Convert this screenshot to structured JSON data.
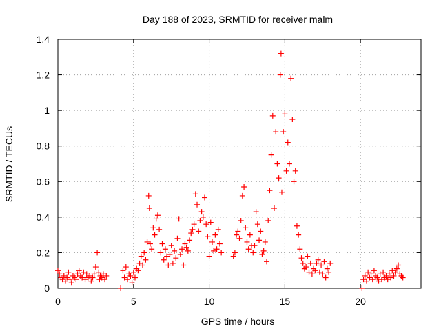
{
  "chart_data": {
    "type": "scatter",
    "title": "Day 188 of 2023, SRMTID for receiver malm",
    "xlabel": "GPS time / hours",
    "ylabel": "SRMTID / TECUs",
    "xlim": [
      0,
      24
    ],
    "ylim": [
      0,
      1.4
    ],
    "xticks": [
      0,
      5,
      10,
      15,
      20
    ],
    "xtick_labels": [
      "0",
      "5",
      "10",
      "15",
      "20"
    ],
    "yticks": [
      0,
      0.2,
      0.4,
      0.6,
      0.8,
      1.0,
      1.2,
      1.4
    ],
    "ytick_labels": [
      "0",
      "0.2",
      "0.4",
      "0.6",
      "0.8",
      "1",
      "1.2",
      "1.4"
    ],
    "grid": true,
    "marker": "plus",
    "series": [
      {
        "name": "SRMTID",
        "color": "#ff0000",
        "x": [
          0.0,
          0.1,
          0.2,
          0.3,
          0.4,
          0.5,
          0.6,
          0.7,
          0.8,
          0.9,
          1.0,
          1.1,
          1.2,
          1.3,
          1.4,
          1.5,
          1.6,
          1.7,
          1.8,
          1.9,
          2.0,
          2.1,
          2.2,
          2.3,
          2.4,
          2.5,
          2.6,
          2.7,
          2.75,
          2.8,
          2.9,
          3.0,
          3.1,
          3.2,
          4.15,
          4.3,
          4.4,
          4.5,
          4.6,
          4.7,
          4.8,
          4.9,
          5.0,
          5.1,
          5.2,
          5.3,
          5.4,
          5.5,
          5.6,
          5.7,
          5.8,
          5.9,
          6.0,
          6.05,
          6.1,
          6.2,
          6.3,
          6.4,
          6.5,
          6.6,
          6.7,
          6.8,
          6.9,
          7.0,
          7.1,
          7.2,
          7.3,
          7.4,
          7.5,
          7.6,
          7.7,
          7.8,
          7.9,
          8.0,
          8.1,
          8.2,
          8.3,
          8.4,
          8.5,
          8.6,
          8.7,
          8.8,
          8.9,
          9.0,
          9.1,
          9.2,
          9.3,
          9.4,
          9.5,
          9.6,
          9.7,
          9.8,
          9.9,
          10.0,
          10.1,
          10.2,
          10.3,
          10.4,
          10.5,
          10.6,
          10.7,
          10.8,
          11.6,
          11.7,
          11.8,
          11.9,
          12.0,
          12.1,
          12.2,
          12.3,
          12.4,
          12.5,
          12.6,
          12.7,
          12.8,
          12.9,
          13.0,
          13.1,
          13.2,
          13.3,
          13.4,
          13.5,
          13.6,
          13.7,
          13.8,
          13.9,
          14.0,
          14.1,
          14.2,
          14.3,
          14.4,
          14.5,
          14.6,
          14.7,
          14.75,
          14.8,
          14.9,
          15.0,
          15.1,
          15.2,
          15.3,
          15.4,
          15.5,
          15.6,
          15.7,
          15.8,
          15.9,
          16.0,
          16.1,
          16.2,
          16.3,
          16.4,
          16.5,
          16.6,
          16.7,
          16.8,
          16.9,
          17.0,
          17.1,
          17.2,
          17.3,
          17.4,
          17.5,
          17.6,
          17.7,
          17.8,
          17.9,
          18.0,
          20.1,
          20.2,
          20.3,
          20.4,
          20.5,
          20.6,
          20.7,
          20.8,
          20.9,
          21.0,
          21.1,
          21.2,
          21.3,
          21.4,
          21.5,
          21.6,
          21.7,
          21.8,
          21.9,
          22.0,
          22.1,
          22.2,
          22.3,
          22.4,
          22.5,
          22.6,
          22.7,
          22.8
        ],
        "y": [
          0.1,
          0.08,
          0.06,
          0.05,
          0.07,
          0.04,
          0.06,
          0.09,
          0.05,
          0.03,
          0.07,
          0.06,
          0.05,
          0.08,
          0.1,
          0.07,
          0.06,
          0.09,
          0.05,
          0.08,
          0.06,
          0.07,
          0.04,
          0.06,
          0.08,
          0.12,
          0.2,
          0.09,
          0.05,
          0.07,
          0.06,
          0.08,
          0.05,
          0.07,
          0.0,
          0.1,
          0.06,
          0.12,
          0.05,
          0.08,
          0.07,
          0.03,
          0.09,
          0.06,
          0.11,
          0.1,
          0.14,
          0.18,
          0.13,
          0.2,
          0.16,
          0.26,
          0.52,
          0.45,
          0.25,
          0.22,
          0.34,
          0.3,
          0.39,
          0.41,
          0.33,
          0.2,
          0.25,
          0.16,
          0.22,
          0.18,
          0.13,
          0.19,
          0.24,
          0.14,
          0.21,
          0.17,
          0.28,
          0.39,
          0.19,
          0.22,
          0.13,
          0.25,
          0.23,
          0.21,
          0.27,
          0.31,
          0.33,
          0.36,
          0.53,
          0.47,
          0.32,
          0.38,
          0.43,
          0.4,
          0.51,
          0.36,
          0.29,
          0.18,
          0.37,
          0.26,
          0.21,
          0.3,
          0.22,
          0.33,
          0.25,
          0.2,
          0.18,
          0.2,
          0.3,
          0.32,
          0.28,
          0.38,
          0.52,
          0.57,
          0.34,
          0.26,
          0.22,
          0.3,
          0.24,
          0.2,
          0.24,
          0.43,
          0.36,
          0.27,
          0.32,
          0.19,
          0.21,
          0.26,
          0.15,
          0.38,
          0.55,
          0.75,
          0.97,
          0.45,
          0.88,
          0.7,
          0.62,
          1.2,
          1.32,
          0.54,
          0.88,
          0.98,
          0.66,
          0.82,
          0.7,
          1.18,
          0.95,
          0.6,
          0.66,
          0.35,
          0.3,
          0.22,
          0.17,
          0.14,
          0.11,
          0.12,
          0.18,
          0.09,
          0.14,
          0.08,
          0.11,
          0.1,
          0.14,
          0.16,
          0.09,
          0.13,
          0.08,
          0.15,
          0.06,
          0.11,
          0.09,
          0.14,
          0.0,
          0.05,
          0.07,
          0.04,
          0.09,
          0.06,
          0.08,
          0.05,
          0.1,
          0.07,
          0.06,
          0.04,
          0.08,
          0.05,
          0.09,
          0.06,
          0.07,
          0.05,
          0.08,
          0.06,
          0.1,
          0.07,
          0.09,
          0.11,
          0.13,
          0.08,
          0.07,
          0.06
        ]
      }
    ]
  }
}
